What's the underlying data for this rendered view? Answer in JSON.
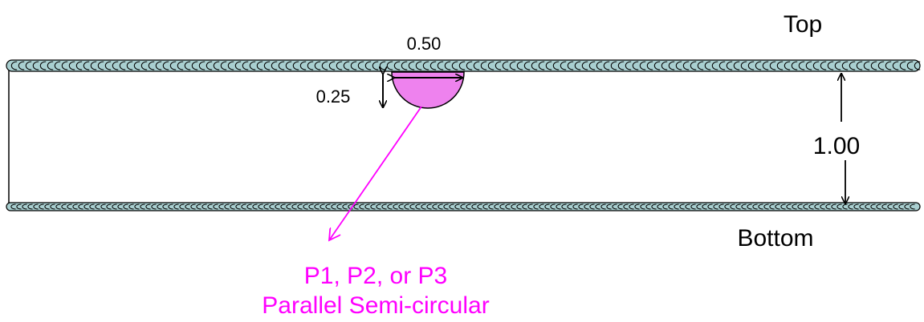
{
  "labels": {
    "top": "Top",
    "bottom": "Bottom",
    "thickness": "1.00",
    "flaw_width": "0.50",
    "flaw_depth": "0.25"
  },
  "callout": {
    "line1": "P1, P2, or P3",
    "line2": "Parallel Semi-circular"
  },
  "colors": {
    "flaw_fill": "#ee82ee",
    "callout": "#ff00ff",
    "fabric_fill": "#a9cfd0",
    "line": "#000000"
  }
}
